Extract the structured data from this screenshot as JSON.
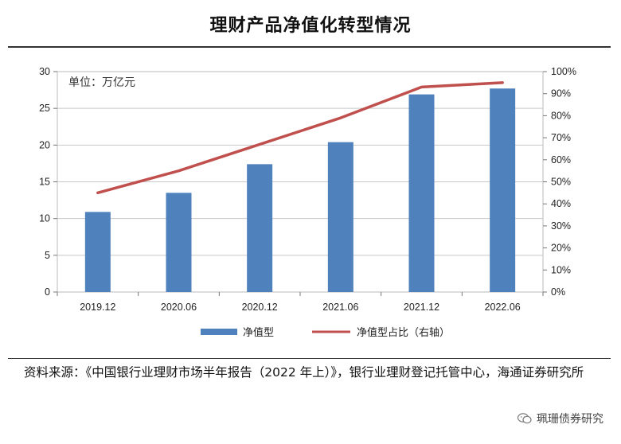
{
  "title": "理财产品净值化转型情况",
  "chart_data": {
    "type": "bar+line",
    "unit_label": "单位：万亿元",
    "categories": [
      "2019.12",
      "2020.06",
      "2020.12",
      "2021.06",
      "2021.12",
      "2022.06"
    ],
    "series": [
      {
        "name": "净值型",
        "type": "bar",
        "axis": "left",
        "values": [
          10.9,
          13.5,
          17.4,
          20.4,
          26.9,
          27.7
        ]
      },
      {
        "name": "净值型占比（右轴）",
        "type": "line",
        "axis": "right",
        "values": [
          45,
          55,
          67,
          79,
          93,
          95
        ]
      }
    ],
    "y_left": {
      "min": 0,
      "max": 30,
      "ticks": [
        "0",
        "5",
        "10",
        "15",
        "20",
        "25",
        "30"
      ]
    },
    "y_right": {
      "min": 0,
      "max": 100,
      "ticks": [
        "0%",
        "10%",
        "20%",
        "30%",
        "40%",
        "50%",
        "60%",
        "70%",
        "80%",
        "90%",
        "100%"
      ]
    },
    "colors": {
      "bar": "#4f81bd",
      "line": "#c0504d"
    }
  },
  "source_text": "资料来源：《中国银行业理财市场半年报告（2022 年上）》，银行业理财登记托管中心，海通证券研究所",
  "brand": {
    "icon": "wechat-icon",
    "label": "珮珊债券研究"
  }
}
